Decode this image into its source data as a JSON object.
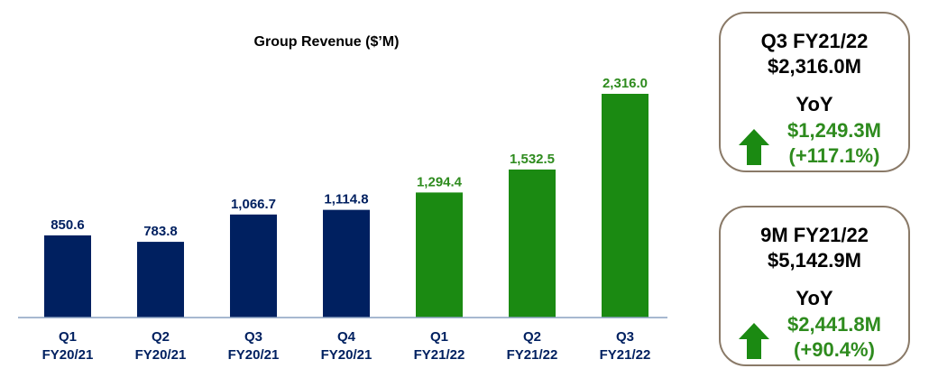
{
  "chart_data": {
    "type": "bar",
    "title": "Group Revenue ($’M)",
    "categories": [
      [
        "Q1",
        "FY20/21"
      ],
      [
        "Q2",
        "FY20/21"
      ],
      [
        "Q3",
        "FY20/21"
      ],
      [
        "Q4",
        "FY20/21"
      ],
      [
        "Q1",
        "FY21/22"
      ],
      [
        "Q2",
        "FY21/22"
      ],
      [
        "Q3",
        "FY21/22"
      ]
    ],
    "values": [
      850.6,
      783.8,
      1066.7,
      1114.8,
      1294.4,
      1532.5,
      2316.0
    ],
    "value_labels": [
      "850.6",
      "783.8",
      "1,066.7",
      "1,114.8",
      "1,294.4",
      "1,532.5",
      "2,316.0"
    ],
    "colors": [
      "#002060",
      "#002060",
      "#002060",
      "#002060",
      "#1b8a12",
      "#1b8a12",
      "#1b8a12"
    ],
    "label_colors": [
      "#002060",
      "#002060",
      "#002060",
      "#002060",
      "#2e8b1e",
      "#2e8b1e",
      "#2e8b1e"
    ],
    "ylim": [
      0,
      2316.0
    ],
    "xlabel": "",
    "ylabel": ""
  },
  "cards": [
    {
      "title_line1": "Q3 FY21/22",
      "title_line2": "$2,316.0M",
      "yoy_label": "YoY",
      "change_value": "$1,249.3M",
      "change_pct": "(+117.1%)"
    },
    {
      "title_line1": "9M FY21/22",
      "title_line2": "$5,142.9M",
      "yoy_label": "YoY",
      "change_value": "$2,441.8M",
      "change_pct": "(+90.4%)"
    }
  ],
  "colors": {
    "navy": "#002060",
    "green": "#1b8a12",
    "green_text": "#2e8b1e",
    "border": "#8a7a68"
  }
}
